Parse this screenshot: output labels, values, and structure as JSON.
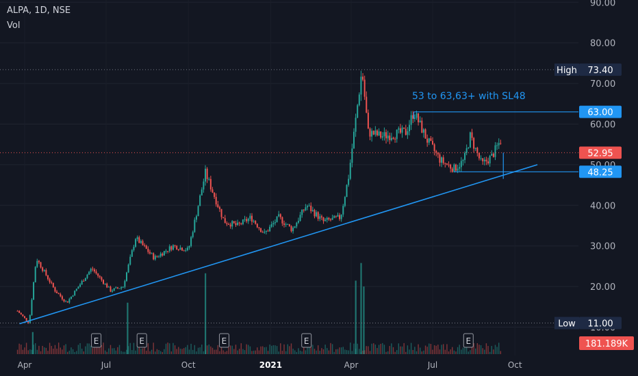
{
  "header": {
    "title": "ALPA, 1D, NSE",
    "vol_label": "Vol"
  },
  "price_axis": {
    "ticks": [
      "90.00",
      "80.00",
      "70.00",
      "60.00",
      "50.00",
      "40.00",
      "30.00",
      "20.00",
      "10.00"
    ]
  },
  "time_axis": {
    "labels": [
      "Apr",
      "Jul",
      "Oct",
      "2021",
      "Apr",
      "Jul",
      "Oct"
    ]
  },
  "labels": {
    "high_label": "High",
    "high_value": "73.40",
    "low_label": "Low",
    "low_value": "11.00",
    "target_value": "63.00",
    "last_value": "52.95",
    "stop_value": "48.25",
    "volume_value": "181.189K",
    "earnings_marker": "E",
    "annotation": "53 to 63,63+ with SL48"
  },
  "colors": {
    "background": "#131722",
    "up": "#26a69a",
    "down": "#ef5350",
    "trendline": "#2196f3",
    "text": "#d1d4dc",
    "axis_text": "#b2b5be",
    "high_low_tag": "#1e2a44",
    "volume_tag": "#ef5350"
  },
  "chart_data": {
    "type": "candlestick",
    "title": "ALPA, 1D, NSE",
    "x_range": [
      "2020-03-24",
      "2021-11-05"
    ],
    "y_range": [
      8,
      92
    ],
    "price_key_points": [
      [
        "2020-03-24",
        14
      ],
      [
        "2020-04-06",
        11
      ],
      [
        "2020-04-14",
        27
      ],
      [
        "2020-05-05",
        19
      ],
      [
        "2020-05-18",
        16
      ],
      [
        "2020-06-15",
        24.5
      ],
      [
        "2020-07-06",
        19
      ],
      [
        "2020-07-20",
        20
      ],
      [
        "2020-08-03",
        32
      ],
      [
        "2020-08-24",
        27
      ],
      [
        "2020-09-14",
        30
      ],
      [
        "2020-10-01",
        29
      ],
      [
        "2020-10-20",
        48
      ],
      [
        "2020-11-10",
        36
      ],
      [
        "2020-11-25",
        35
      ],
      [
        "2020-12-10",
        37
      ],
      [
        "2020-12-25",
        33
      ],
      [
        "2021-01-10",
        37
      ],
      [
        "2021-01-25",
        34
      ],
      [
        "2021-02-10",
        40
      ],
      [
        "2021-03-01",
        36
      ],
      [
        "2021-03-20",
        37
      ],
      [
        "2021-03-29",
        47
      ],
      [
        "2021-04-13",
        73.4
      ],
      [
        "2021-04-20",
        58
      ],
      [
        "2021-05-05",
        57
      ],
      [
        "2021-06-01",
        58
      ],
      [
        "2021-06-10",
        63
      ],
      [
        "2021-06-25",
        56
      ],
      [
        "2021-07-10",
        51
      ],
      [
        "2021-07-25",
        49
      ],
      [
        "2021-08-05",
        51
      ],
      [
        "2021-08-12",
        57
      ],
      [
        "2021-08-25",
        50
      ],
      [
        "2021-09-05",
        52
      ],
      [
        "2021-09-15",
        56
      ]
    ],
    "volume_bars": [
      [
        "2020-04-10",
        0.15
      ],
      [
        "2020-07-25",
        0.35
      ],
      [
        "2020-10-20",
        0.55
      ],
      [
        "2021-04-06",
        0.5
      ],
      [
        "2021-04-12",
        0.62
      ],
      [
        "2021-04-15",
        0.46
      ]
    ],
    "earnings_dates": [
      "2020-06-20",
      "2020-08-10",
      "2020-11-10",
      "2021-02-10",
      "2021-08-10"
    ],
    "trendline": {
      "start": [
        "2020-04-06",
        11
      ],
      "end": [
        "2021-10-20",
        50
      ]
    },
    "horizontal_lines": {
      "high": 73.4,
      "low": 11.0,
      "target": 63.0,
      "last": 52.95,
      "stop": 48.25
    },
    "annotation": {
      "text": "53 to 63,63+ with SL48"
    },
    "last_volume": "181.189K"
  }
}
